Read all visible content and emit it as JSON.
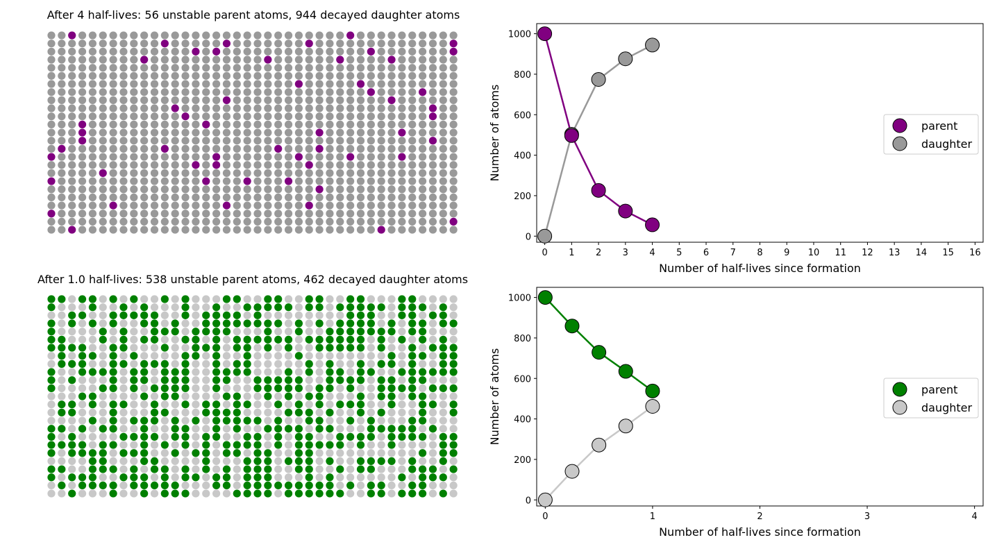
{
  "panels": [
    {
      "grid_title": "After 4 half-lives: 56 unstable parent atoms, 944 decayed daughter atoms",
      "parent_color": "#800080",
      "daughter_color": "#999999",
      "parent_count": 56,
      "daughter_count": 944,
      "grid_columns": 40,
      "grid_rows": 25
    },
    {
      "grid_title": "After 1.0 half-lives: 538 unstable parent atoms, 462 decayed daughter atoms",
      "parent_color": "#008000",
      "daughter_color": "#c8c8c8",
      "parent_count": 538,
      "daughter_count": 462,
      "grid_columns": 40,
      "grid_rows": 25
    }
  ],
  "chart_data": [
    {
      "type": "line",
      "xlabel": "Number of half-lives since formation",
      "ylabel": "Number of atoms",
      "xlim": [
        -0.3,
        16.3
      ],
      "ylim": [
        -30,
        1050
      ],
      "xticks": [
        0,
        1,
        2,
        3,
        4,
        5,
        6,
        7,
        8,
        9,
        10,
        11,
        12,
        13,
        14,
        15,
        16
      ],
      "yticks": [
        0,
        200,
        400,
        600,
        800,
        1000
      ],
      "grid": false,
      "legend_position": "center-right",
      "series": [
        {
          "name": "parent",
          "color": "#800080",
          "x": [
            0,
            1,
            2,
            3,
            4
          ],
          "y": [
            1000,
            497,
            226,
            124,
            56
          ]
        },
        {
          "name": "daughter",
          "color": "#999999",
          "x": [
            0,
            1,
            2,
            3,
            4
          ],
          "y": [
            0,
            503,
            774,
            876,
            944
          ]
        }
      ]
    },
    {
      "type": "line",
      "xlabel": "Number of half-lives since formation",
      "ylabel": "Number of atoms",
      "xlim": [
        -0.08,
        4.08
      ],
      "ylim": [
        -30,
        1050
      ],
      "xticks": [
        0,
        1,
        2,
        3,
        4
      ],
      "yticks": [
        0,
        200,
        400,
        600,
        800,
        1000
      ],
      "grid": false,
      "legend_position": "center-right",
      "series": [
        {
          "name": "parent",
          "color": "#008000",
          "x": [
            0,
            0.25,
            0.5,
            0.75,
            1.0
          ],
          "y": [
            1000,
            859,
            729,
            635,
            538
          ]
        },
        {
          "name": "daughter",
          "color": "#c8c8c8",
          "x": [
            0,
            0.25,
            0.5,
            0.75,
            1.0
          ],
          "y": [
            0,
            141,
            271,
            365,
            462
          ]
        }
      ]
    }
  ]
}
